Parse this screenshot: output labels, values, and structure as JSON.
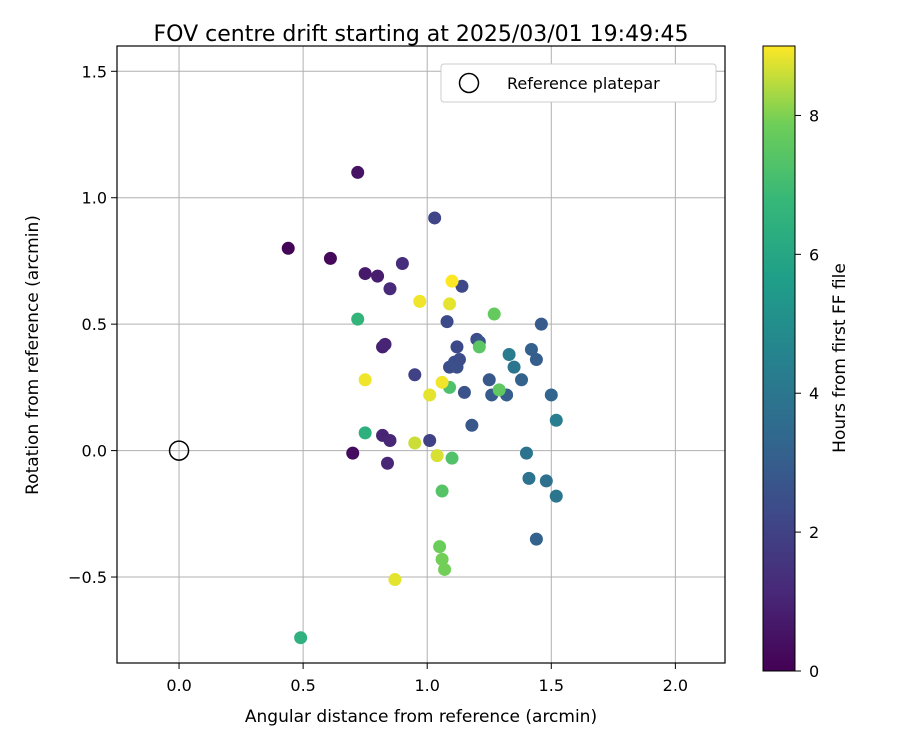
{
  "chart_data": {
    "type": "scatter",
    "title": "FOV centre drift starting at 2025/03/01 19:49:45",
    "xlabel": "Angular distance from reference (arcmin)",
    "ylabel": "Rotation from reference (arcmin)",
    "colorbar_label": "Hours from first FF file",
    "xlim": [
      -0.25,
      2.2
    ],
    "ylim": [
      -0.84,
      1.6
    ],
    "clim": [
      0,
      9
    ],
    "x_ticks": [
      0.0,
      0.5,
      1.0,
      1.5,
      2.0
    ],
    "x_tick_labels": [
      "0.0",
      "0.5",
      "1.0",
      "1.5",
      "2.0"
    ],
    "y_ticks": [
      -0.5,
      0.0,
      0.5,
      1.0,
      1.5
    ],
    "y_tick_labels": [
      "−0.5",
      "0.0",
      "0.5",
      "1.0",
      "1.5"
    ],
    "colorbar_ticks": [
      0,
      2,
      4,
      6,
      8
    ],
    "colorbar_tick_labels": [
      "0",
      "2",
      "4",
      "6",
      "8"
    ],
    "grid": true,
    "legend_position": "top-right",
    "colormap": "viridis",
    "reference": {
      "name": "Reference platepar",
      "x": 0.0,
      "y": 0.0
    },
    "points": [
      {
        "x": 0.44,
        "y": 0.8,
        "h": 0.1
      },
      {
        "x": 0.61,
        "y": 0.76,
        "h": 0.2
      },
      {
        "x": 0.7,
        "y": -0.01,
        "h": 0.3
      },
      {
        "x": 0.72,
        "y": 1.1,
        "h": 0.5
      },
      {
        "x": 0.75,
        "y": 0.7,
        "h": 0.7
      },
      {
        "x": 0.8,
        "y": 0.69,
        "h": 0.8
      },
      {
        "x": 0.82,
        "y": 0.41,
        "h": 0.9
      },
      {
        "x": 0.83,
        "y": 0.42,
        "h": 1.0
      },
      {
        "x": 0.82,
        "y": 0.06,
        "h": 1.0
      },
      {
        "x": 0.85,
        "y": 0.04,
        "h": 1.1
      },
      {
        "x": 0.84,
        "y": -0.05,
        "h": 1.1
      },
      {
        "x": 0.85,
        "y": 0.64,
        "h": 1.2
      },
      {
        "x": 0.9,
        "y": 0.74,
        "h": 1.3
      },
      {
        "x": 0.95,
        "y": 0.3,
        "h": 2.0
      },
      {
        "x": 1.01,
        "y": 0.04,
        "h": 2.0
      },
      {
        "x": 1.03,
        "y": 0.92,
        "h": 2.1
      },
      {
        "x": 1.08,
        "y": 0.51,
        "h": 2.3
      },
      {
        "x": 1.09,
        "y": 0.33,
        "h": 2.4
      },
      {
        "x": 1.11,
        "y": 0.35,
        "h": 2.5
      },
      {
        "x": 1.12,
        "y": 0.41,
        "h": 2.3
      },
      {
        "x": 1.12,
        "y": 0.33,
        "h": 2.5
      },
      {
        "x": 1.13,
        "y": 0.36,
        "h": 2.4
      },
      {
        "x": 1.14,
        "y": 0.65,
        "h": 2.2
      },
      {
        "x": 1.15,
        "y": 0.23,
        "h": 2.6
      },
      {
        "x": 1.18,
        "y": 0.1,
        "h": 2.8
      },
      {
        "x": 1.2,
        "y": 0.44,
        "h": 2.4
      },
      {
        "x": 1.21,
        "y": 0.43,
        "h": 2.6
      },
      {
        "x": 1.25,
        "y": 0.28,
        "h": 2.8
      },
      {
        "x": 1.26,
        "y": 0.22,
        "h": 2.9
      },
      {
        "x": 1.32,
        "y": 0.22,
        "h": 3.0
      },
      {
        "x": 1.38,
        "y": 0.28,
        "h": 3.2
      },
      {
        "x": 1.42,
        "y": 0.4,
        "h": 3.1
      },
      {
        "x": 1.44,
        "y": 0.36,
        "h": 3.0
      },
      {
        "x": 1.46,
        "y": 0.5,
        "h": 2.9
      },
      {
        "x": 1.44,
        "y": -0.35,
        "h": 3.2
      },
      {
        "x": 1.5,
        "y": 0.22,
        "h": 3.3
      },
      {
        "x": 1.33,
        "y": 0.38,
        "h": 4.2
      },
      {
        "x": 1.35,
        "y": 0.33,
        "h": 4.0
      },
      {
        "x": 1.4,
        "y": -0.01,
        "h": 3.9
      },
      {
        "x": 1.41,
        "y": -0.11,
        "h": 3.8
      },
      {
        "x": 1.48,
        "y": -0.12,
        "h": 3.7
      },
      {
        "x": 1.52,
        "y": -0.18,
        "h": 4.0
      },
      {
        "x": 1.52,
        "y": 0.12,
        "h": 4.3
      },
      {
        "x": 0.49,
        "y": -0.74,
        "h": 6.5
      },
      {
        "x": 0.72,
        "y": 0.52,
        "h": 6.6
      },
      {
        "x": 0.75,
        "y": 0.07,
        "h": 6.4
      },
      {
        "x": 1.09,
        "y": 0.25,
        "h": 7.2
      },
      {
        "x": 1.1,
        "y": -0.03,
        "h": 7.3
      },
      {
        "x": 1.06,
        "y": -0.16,
        "h": 7.4
      },
      {
        "x": 1.05,
        "y": -0.38,
        "h": 7.8
      },
      {
        "x": 1.06,
        "y": -0.43,
        "h": 7.9
      },
      {
        "x": 1.07,
        "y": -0.47,
        "h": 7.9
      },
      {
        "x": 1.21,
        "y": 0.41,
        "h": 7.5
      },
      {
        "x": 1.27,
        "y": 0.54,
        "h": 7.7
      },
      {
        "x": 1.29,
        "y": 0.24,
        "h": 7.6
      },
      {
        "x": 0.75,
        "y": 0.28,
        "h": 8.9
      },
      {
        "x": 0.87,
        "y": -0.51,
        "h": 8.8
      },
      {
        "x": 0.95,
        "y": 0.03,
        "h": 8.6
      },
      {
        "x": 0.97,
        "y": 0.59,
        "h": 8.9
      },
      {
        "x": 1.01,
        "y": 0.22,
        "h": 8.8
      },
      {
        "x": 1.04,
        "y": -0.02,
        "h": 8.7
      },
      {
        "x": 1.06,
        "y": 0.27,
        "h": 8.9
      },
      {
        "x": 1.09,
        "y": 0.58,
        "h": 8.8
      },
      {
        "x": 1.1,
        "y": 0.67,
        "h": 9.0
      }
    ]
  }
}
